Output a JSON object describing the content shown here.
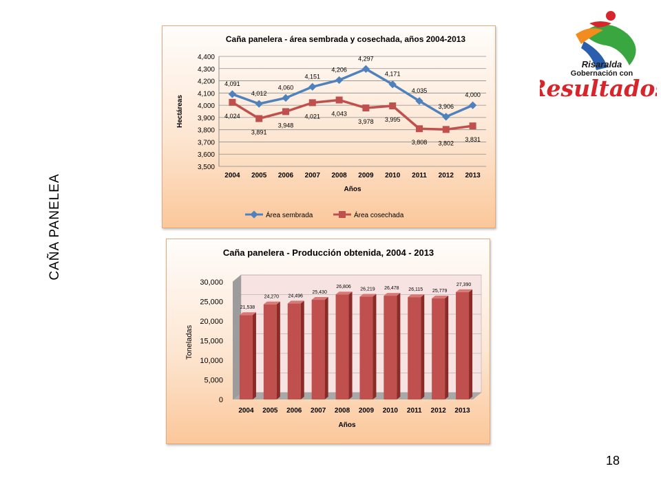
{
  "side_title": "CAÑA PANELEA",
  "page_number": "18",
  "logo": {
    "line1": "Risaralda",
    "line2": "Gobernación con",
    "line3": "Resultados",
    "colors": {
      "red": "#d7262b",
      "green": "#3aa63f",
      "blue": "#2b5fad",
      "orange": "#f28c1e",
      "black": "#1a1a1a"
    }
  },
  "chart_data": [
    {
      "type": "line",
      "title": "Caña panelera - área sembrada y cosechada, años 2004-2013",
      "xlabel": "Años",
      "ylabel": "Hectáreas",
      "x": [
        "2004",
        "2005",
        "2006",
        "2007",
        "2008",
        "2009",
        "2010",
        "2011",
        "2012",
        "2013"
      ],
      "ylim": [
        3500,
        4400
      ],
      "yticks": [
        "3,500",
        "3,600",
        "3,700",
        "3,800",
        "3,900",
        "4,000",
        "4,100",
        "4,200",
        "4,300",
        "4,400"
      ],
      "ytick_values": [
        3500,
        3600,
        3700,
        3800,
        3900,
        4000,
        4100,
        4200,
        4300,
        4400
      ],
      "legend_position": "bottom",
      "grid": true,
      "series": [
        {
          "name": "Área sembrada",
          "color": "#4f81bd",
          "values": [
            4091,
            4012,
            4060,
            4151,
            4206,
            4297,
            4171,
            4035,
            3906,
            4000
          ],
          "labels": [
            "4,091",
            "4,012",
            "4,060",
            "4,151",
            "4,206",
            "4,297",
            "4,171",
            "4,035",
            "3,906",
            "4,000"
          ]
        },
        {
          "name": "Área cosechada",
          "color": "#c0504d",
          "values": [
            4024,
            3891,
            3948,
            4021,
            4043,
            3978,
            3995,
            3808,
            3802,
            3831
          ],
          "labels": [
            "4,024",
            "3,891",
            "3,948",
            "4,021",
            "4,043",
            "3,978",
            "3,995",
            "3,808",
            "3,802",
            "3,831"
          ]
        }
      ]
    },
    {
      "type": "bar",
      "title": "Caña panelera - Producción obtenida, 2004 - 2013",
      "xlabel": "Años",
      "ylabel": "Toneladas",
      "categories": [
        "2004",
        "2005",
        "2006",
        "2007",
        "2008",
        "2009",
        "2010",
        "2011",
        "2012",
        "2013"
      ],
      "ylim": [
        0,
        30000
      ],
      "yticks": [
        "0",
        "5,000",
        "10,000",
        "15,000",
        "20,000",
        "25,000",
        "30,000"
      ],
      "ytick_values": [
        0,
        5000,
        10000,
        15000,
        20000,
        25000,
        30000
      ],
      "grid": true,
      "bar_color": "#c0504d",
      "values": [
        21538,
        24270,
        24496,
        25430,
        26806,
        26219,
        26478,
        26115,
        25779,
        27390
      ],
      "labels": [
        "21,538",
        "24,270",
        "24,496",
        "25,430",
        "26,806",
        "26,219",
        "26,478",
        "26,115",
        "25,779",
        "27,390"
      ]
    }
  ]
}
